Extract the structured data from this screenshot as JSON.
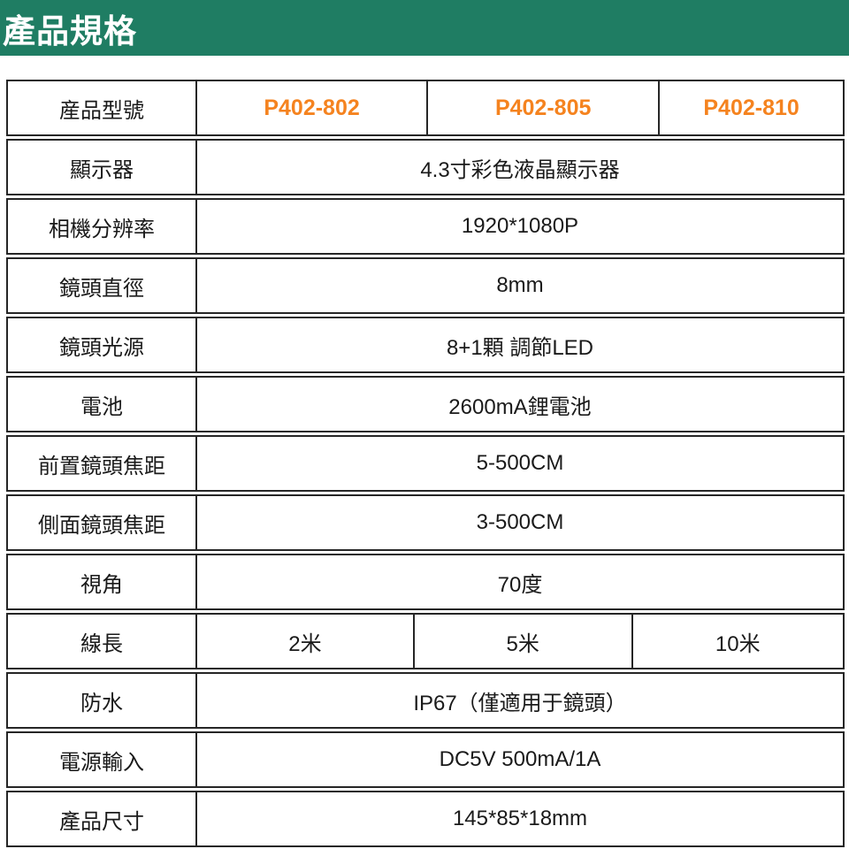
{
  "header": {
    "title": "產品規格",
    "bg_color": "#1f7d63",
    "text_color": "#ffffff"
  },
  "accent": {
    "model_color": "#f5831f",
    "border_color": "#262626"
  },
  "table": {
    "rows": [
      {
        "label": "産品型號",
        "cells": [
          "P402-802",
          "P402-805",
          "P402-810"
        ]
      },
      {
        "label": "顯示器",
        "value": "4.3寸彩色液晶顯示器"
      },
      {
        "label": "相機分辨率",
        "value": "1920*1080P"
      },
      {
        "label": "鏡頭直徑",
        "value": "8mm"
      },
      {
        "label": "鏡頭光源",
        "value": "8+1顆 調節LED"
      },
      {
        "label": "電池",
        "value": "2600mA鋰電池"
      },
      {
        "label": "前置鏡頭焦距",
        "value": "5-500CM"
      },
      {
        "label": "側面鏡頭焦距",
        "value": "3-500CM"
      },
      {
        "label": "視角",
        "value": "70度"
      },
      {
        "label": "線長",
        "cells": [
          "2米",
          "5米",
          "10米"
        ]
      },
      {
        "label": "防水",
        "value": "IP67（僅適用于鏡頭）"
      },
      {
        "label": "電源輸入",
        "value": "DC5V 500mA/1A"
      },
      {
        "label": "產品尺寸",
        "value": "145*85*18mm"
      }
    ]
  }
}
